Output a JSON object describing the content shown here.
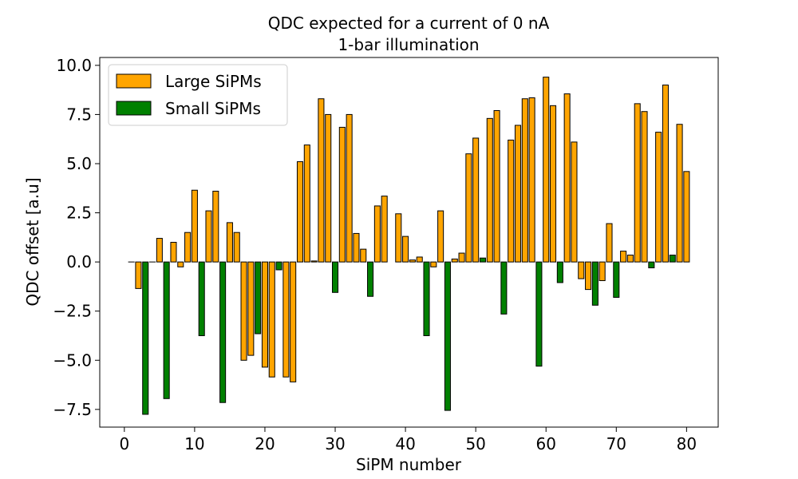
{
  "chart_data": {
    "type": "bar",
    "title": "QDC expected for a current of 0 nA",
    "subtitle": "1-bar illumination",
    "xlabel": "SiPM number",
    "ylabel": "QDC offset [a.u]",
    "xlim": [
      -3.5,
      84.5
    ],
    "ylim": [
      -8.4,
      10.4
    ],
    "xticks": [
      0,
      10,
      20,
      30,
      40,
      50,
      60,
      70,
      80
    ],
    "yticks": [
      -7.5,
      -5.0,
      -2.5,
      0.0,
      2.5,
      5.0,
      7.5,
      10.0
    ],
    "ytick_labels": [
      "−7.5",
      "−5.0",
      "−2.5",
      "0.0",
      "2.5",
      "5.0",
      "7.5",
      "10.0"
    ],
    "grid": false,
    "legend_position": "top-left",
    "colors": {
      "large": "#ffa500",
      "small": "#008000",
      "edge": "#000000"
    },
    "series": [
      {
        "name": "Large SiPMs",
        "x": [
          1,
          2,
          4,
          5,
          7,
          8,
          9,
          10,
          12,
          13,
          15,
          16,
          17,
          18,
          20,
          21,
          23,
          24,
          25,
          26,
          27,
          28,
          29,
          31,
          32,
          33,
          34,
          36,
          37,
          39,
          40,
          41,
          42,
          44,
          45,
          47,
          48,
          49,
          50,
          52,
          53,
          55,
          56,
          57,
          58,
          60,
          61,
          63,
          64,
          65,
          66,
          68,
          69,
          71,
          72,
          73,
          74,
          76,
          77,
          79,
          80
        ],
        "values": [
          0.0,
          -1.35,
          0.0,
          1.2,
          1.0,
          -0.25,
          1.5,
          3.65,
          2.6,
          3.6,
          2.0,
          1.5,
          -5.0,
          -4.75,
          -5.35,
          -5.85,
          -5.85,
          -6.1,
          5.1,
          5.95,
          0.05,
          8.3,
          7.5,
          6.85,
          7.5,
          1.45,
          0.65,
          2.85,
          3.35,
          2.45,
          1.3,
          0.1,
          0.25,
          -0.25,
          2.6,
          0.15,
          0.45,
          5.5,
          6.3,
          7.3,
          7.7,
          6.2,
          6.95,
          8.3,
          8.35,
          9.4,
          7.95,
          8.55,
          6.1,
          -0.85,
          -1.4,
          -0.95,
          1.95,
          0.55,
          0.35,
          8.05,
          7.65,
          6.6,
          9.0,
          7.0,
          4.6
        ]
      },
      {
        "name": "Small SiPMs",
        "x": [
          3,
          6,
          11,
          14,
          19,
          22,
          30,
          35,
          43,
          46,
          51,
          54,
          59,
          62,
          67,
          70,
          75,
          78
        ],
        "values": [
          -7.75,
          -6.95,
          -3.75,
          -7.15,
          -3.65,
          -0.4,
          -1.55,
          -1.75,
          -3.75,
          -7.55,
          0.2,
          -2.65,
          -5.3,
          -1.05,
          -2.2,
          -1.8,
          -0.3,
          0.35
        ]
      }
    ]
  }
}
